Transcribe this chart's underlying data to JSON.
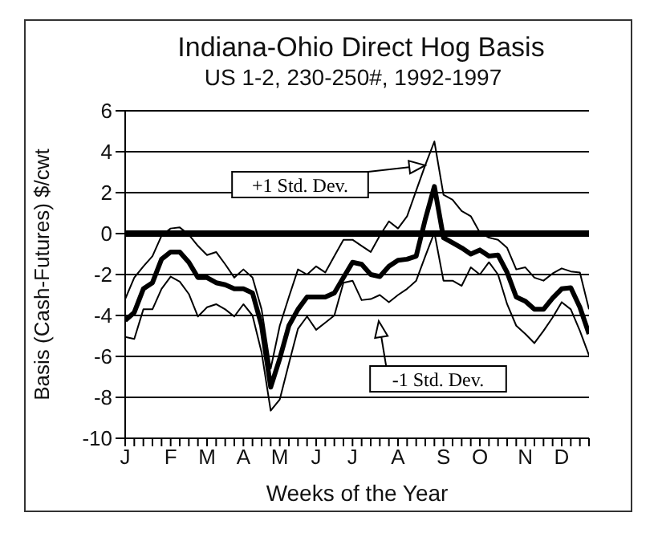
{
  "chart_data": {
    "type": "line",
    "title": "Indiana-Ohio Direct Hog Basis",
    "subtitle": "US 1-2, 230-250#, 1992-1997",
    "xlabel": "Weeks of the Year",
    "ylabel": "Basis (Cash-Futures)  $/cwt",
    "categories": [
      "J",
      null,
      null,
      null,
      null,
      "F",
      null,
      null,
      null,
      "M",
      null,
      null,
      null,
      "A",
      null,
      null,
      null,
      "M",
      null,
      null,
      null,
      "J",
      null,
      null,
      null,
      "J",
      null,
      null,
      null,
      null,
      "A",
      null,
      null,
      null,
      null,
      "S",
      null,
      null,
      null,
      "O",
      null,
      null,
      null,
      null,
      "N",
      null,
      null,
      null,
      "D",
      null,
      null,
      null
    ],
    "series": [
      {
        "color": "#000000",
        "values": [
          -3.2,
          -2.15,
          -1.6,
          -1.1,
          -0.1,
          0.25,
          0.3,
          -0.05,
          -0.6,
          -1.05,
          -0.9,
          -1.5,
          -2.15,
          -1.75,
          -2.15,
          -3.7,
          -6.6,
          -4.5,
          -3.1,
          -1.75,
          -2.0,
          -1.6,
          -1.9,
          -1.1,
          -0.3,
          -0.3,
          -0.6,
          -0.9,
          -0.1,
          0.6,
          0.25,
          0.85,
          2.1,
          3.35,
          4.5,
          1.9,
          1.65,
          1.1,
          0.85,
          0.05,
          -0.2,
          -0.3,
          -0.7,
          -1.75,
          -1.65,
          -2.15,
          -2.3,
          -1.95,
          -1.7,
          -1.85,
          -1.9,
          -3.7
        ]
      },
      {
        "color": "#000000",
        "values": [
          -4.25,
          -3.85,
          -2.7,
          -2.4,
          -1.25,
          -0.9,
          -0.9,
          -1.4,
          -2.15,
          -2.15,
          -2.4,
          -2.5,
          -2.7,
          -2.7,
          -2.9,
          -4.5,
          -7.5,
          -6.1,
          -4.5,
          -3.7,
          -3.1,
          -3.1,
          -3.1,
          -2.9,
          -2.15,
          -1.4,
          -1.5,
          -2.0,
          -2.1,
          -1.6,
          -1.3,
          -1.25,
          -1.1,
          0.7,
          2.3,
          -0.2,
          -0.45,
          -0.7,
          -1.0,
          -0.8,
          -1.1,
          -1.05,
          -1.9,
          -3.1,
          -3.3,
          -3.7,
          -3.7,
          -3.15,
          -2.7,
          -2.65,
          -3.6,
          -4.9
        ]
      },
      {
        "color": "#000000",
        "values": [
          -5.05,
          -5.15,
          -3.7,
          -3.7,
          -2.7,
          -2.1,
          -2.35,
          -2.95,
          -4.05,
          -3.6,
          -3.45,
          -3.7,
          -4.05,
          -3.45,
          -4.0,
          -5.8,
          -8.65,
          -8.1,
          -6.35,
          -4.65,
          -4.05,
          -4.7,
          -4.35,
          -4.0,
          -2.4,
          -2.3,
          -3.25,
          -3.2,
          -3.0,
          -3.35,
          -3.0,
          -2.7,
          -2.3,
          -1.1,
          0.05,
          -2.3,
          -2.3,
          -2.55,
          -1.65,
          -2.0,
          -1.4,
          -2.0,
          -3.45,
          -4.5,
          -4.9,
          -5.35,
          -4.75,
          -4.1,
          -3.35,
          -3.7,
          -4.75,
          -5.95
        ]
      }
    ],
    "ylim": [
      -10,
      6
    ],
    "yticks": [
      -10,
      -8,
      -6,
      -4,
      -2,
      0,
      2,
      4,
      6
    ],
    "grid": "y",
    "marker": "none",
    "line_style": "solid",
    "ref_lines": [
      {
        "axis": "y",
        "value": 0
      }
    ],
    "annotations": [
      "+1 Std. Dev.",
      "-1 Std. Dev."
    ]
  }
}
